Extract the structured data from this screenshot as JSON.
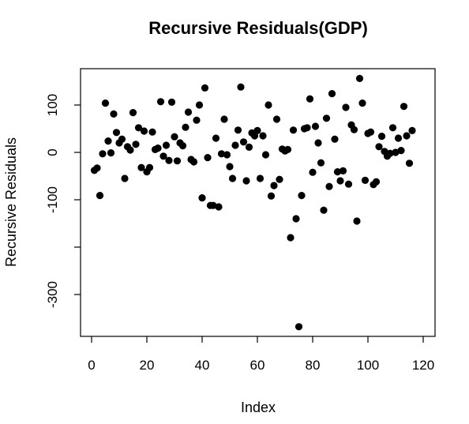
{
  "chart_data": {
    "type": "scatter",
    "title": "Recursive Residuals(GDP)",
    "xlabel": "Index",
    "ylabel": "Recursive Residuals",
    "xlim": [
      1,
      116
    ],
    "ylim": [
      -385,
      155
    ],
    "xticks": [
      0,
      20,
      40,
      60,
      80,
      100,
      120
    ],
    "yticks": [
      100,
      0,
      -100,
      -200,
      -300
    ],
    "ytick_labels": [
      "100",
      "0",
      "-100",
      "",
      "-300"
    ],
    "grid": false,
    "point_color": "#000000",
    "series": [
      {
        "x": [
          1,
          2,
          3,
          4,
          5,
          6,
          7,
          8,
          9,
          10,
          11,
          12,
          13,
          14,
          15,
          16,
          17,
          18,
          19,
          20,
          21,
          22,
          23,
          24,
          25,
          26,
          27,
          28,
          29,
          30,
          31,
          32,
          33,
          34,
          35,
          36,
          37,
          38,
          39,
          40,
          41,
          42,
          43,
          44,
          45,
          46,
          47,
          48,
          49,
          50,
          51,
          52,
          53,
          54,
          55,
          56,
          57,
          58,
          59,
          60,
          61,
          62,
          63,
          64,
          65,
          66,
          67,
          68,
          69,
          70,
          71,
          72,
          73,
          74,
          75,
          76,
          77,
          78,
          79,
          80,
          81,
          82,
          83,
          84,
          85,
          86,
          87,
          88,
          89,
          90,
          91,
          92,
          93,
          94,
          95,
          96,
          97,
          98,
          99,
          100,
          101,
          102,
          103,
          104,
          105,
          106,
          107,
          108,
          109,
          110,
          111,
          112,
          113,
          114,
          115,
          116
        ],
        "y": [
          -38,
          -33,
          -91,
          -3,
          104,
          24,
          -1,
          81,
          42,
          20,
          28,
          -55,
          12,
          5,
          84,
          17,
          52,
          -32,
          45,
          -41,
          -32,
          43,
          6,
          9,
          107,
          -8,
          15,
          -17,
          106,
          33,
          -18,
          20,
          14,
          53,
          85,
          -15,
          -20,
          68,
          100,
          -96,
          136,
          -11,
          -112,
          -112,
          30,
          -115,
          -3,
          70,
          -5,
          -30,
          -55,
          15,
          47,
          138,
          22,
          -60,
          11,
          41,
          35,
          46,
          -55,
          35,
          -5,
          100,
          -92,
          -70,
          70,
          -57,
          7,
          3,
          6,
          -180,
          47,
          -140,
          -368,
          -91,
          50,
          52,
          113,
          -42,
          55,
          20,
          -22,
          -122,
          72,
          -72,
          124,
          28,
          -41,
          -60,
          -39,
          95,
          -67,
          58,
          48,
          -145,
          156,
          104,
          -59,
          40,
          43,
          -68,
          -62,
          12,
          34,
          2,
          -8,
          -2,
          52,
          0,
          30,
          4,
          97,
          35,
          -23,
          46
        ]
      }
    ]
  }
}
